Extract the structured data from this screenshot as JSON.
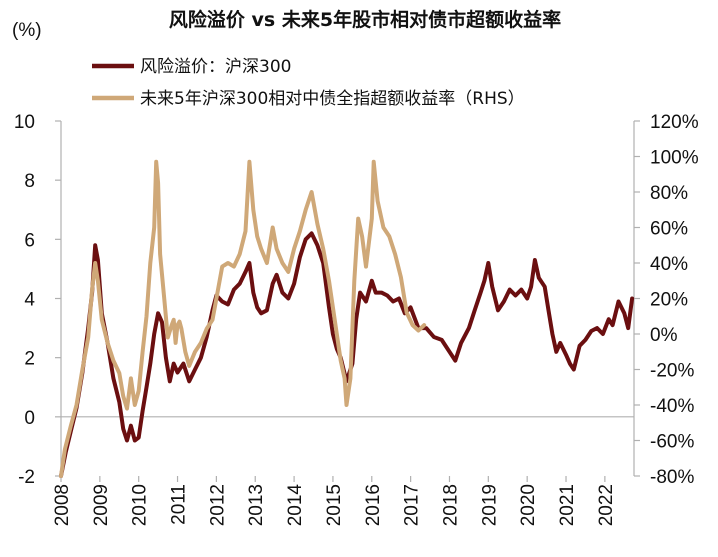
{
  "chart_data": {
    "type": "line",
    "title": "风险溢价 vs 未来5年股市相对债市超额收益率",
    "left_unit": "(%)",
    "colors": {
      "risk_premium": "#6b0f10",
      "excess_return": "#cfa878",
      "axis": "#b0b0b0",
      "neg_tick": "#cc1f1f"
    },
    "x": {
      "categories": [
        "2008",
        "2009",
        "2010",
        "2011",
        "2012",
        "2013",
        "2014",
        "2015",
        "2016",
        "2017",
        "2018",
        "2019",
        "2020",
        "2021",
        "2022"
      ],
      "range": [
        2008.0,
        2022.75
      ]
    },
    "y_left": {
      "range": [
        -2,
        10
      ],
      "ticks": [
        -2,
        0,
        2,
        4,
        6,
        8,
        10
      ]
    },
    "y_right": {
      "range": [
        -80,
        120
      ],
      "ticks": [
        -80,
        -60,
        -40,
        -20,
        0,
        20,
        40,
        60,
        80,
        100,
        120
      ],
      "tick_labels": [
        "-80%",
        "-60%",
        "-40%",
        "-20%",
        "0%",
        "20%",
        "40%",
        "60%",
        "80%",
        "100%",
        "120%"
      ]
    },
    "legend": [
      "风险溢价：沪深300",
      "未来5年沪深300相对中债全指超额收益率（RHS）"
    ],
    "series": [
      {
        "name": "风险溢价：沪深300",
        "axis": "left",
        "points": [
          [
            2008.0,
            -2.0
          ],
          [
            2008.12,
            -1.2
          ],
          [
            2008.25,
            -0.5
          ],
          [
            2008.4,
            0.3
          ],
          [
            2008.55,
            1.5
          ],
          [
            2008.7,
            3.0
          ],
          [
            2008.8,
            4.2
          ],
          [
            2008.88,
            5.8
          ],
          [
            2008.95,
            5.3
          ],
          [
            2009.05,
            3.5
          ],
          [
            2009.2,
            2.5
          ],
          [
            2009.35,
            1.3
          ],
          [
            2009.5,
            0.5
          ],
          [
            2009.6,
            -0.4
          ],
          [
            2009.7,
            -0.8
          ],
          [
            2009.8,
            -0.3
          ],
          [
            2009.9,
            -0.8
          ],
          [
            2010.0,
            -0.7
          ],
          [
            2010.1,
            0.2
          ],
          [
            2010.2,
            1.0
          ],
          [
            2010.3,
            1.8
          ],
          [
            2010.4,
            2.8
          ],
          [
            2010.5,
            3.5
          ],
          [
            2010.6,
            3.2
          ],
          [
            2010.7,
            2.0
          ],
          [
            2010.8,
            1.2
          ],
          [
            2010.9,
            1.8
          ],
          [
            2011.0,
            1.5
          ],
          [
            2011.15,
            1.8
          ],
          [
            2011.3,
            1.2
          ],
          [
            2011.45,
            1.6
          ],
          [
            2011.6,
            2.0
          ],
          [
            2011.75,
            2.7
          ],
          [
            2011.9,
            3.6
          ],
          [
            2012.0,
            4.1
          ],
          [
            2012.15,
            3.9
          ],
          [
            2012.3,
            3.8
          ],
          [
            2012.45,
            4.3
          ],
          [
            2012.6,
            4.5
          ],
          [
            2012.75,
            4.9
          ],
          [
            2012.85,
            5.2
          ],
          [
            2012.95,
            4.2
          ],
          [
            2013.05,
            3.7
          ],
          [
            2013.15,
            3.5
          ],
          [
            2013.3,
            3.6
          ],
          [
            2013.45,
            4.5
          ],
          [
            2013.55,
            4.8
          ],
          [
            2013.7,
            4.2
          ],
          [
            2013.85,
            4.0
          ],
          [
            2014.0,
            4.5
          ],
          [
            2014.15,
            5.4
          ],
          [
            2014.3,
            6.0
          ],
          [
            2014.45,
            6.2
          ],
          [
            2014.6,
            5.8
          ],
          [
            2014.75,
            5.2
          ],
          [
            2014.9,
            3.7
          ],
          [
            2015.0,
            2.8
          ],
          [
            2015.1,
            2.3
          ],
          [
            2015.2,
            2.0
          ],
          [
            2015.35,
            1.2
          ],
          [
            2015.5,
            1.8
          ],
          [
            2015.6,
            3.3
          ],
          [
            2015.7,
            4.2
          ],
          [
            2015.85,
            3.9
          ],
          [
            2016.0,
            4.6
          ],
          [
            2016.1,
            4.2
          ],
          [
            2016.25,
            4.2
          ],
          [
            2016.4,
            4.1
          ],
          [
            2016.55,
            3.9
          ],
          [
            2016.7,
            4.0
          ],
          [
            2016.85,
            3.5
          ],
          [
            2017.0,
            3.7
          ],
          [
            2017.2,
            3.0
          ],
          [
            2017.4,
            3.0
          ],
          [
            2017.6,
            2.7
          ],
          [
            2017.8,
            2.6
          ],
          [
            2018.0,
            2.2
          ],
          [
            2018.15,
            1.9
          ],
          [
            2018.3,
            2.5
          ],
          [
            2018.5,
            3.0
          ],
          [
            2018.65,
            3.6
          ],
          [
            2018.8,
            4.2
          ],
          [
            2018.9,
            4.6
          ],
          [
            2019.0,
            5.2
          ],
          [
            2019.1,
            4.4
          ],
          [
            2019.25,
            3.6
          ],
          [
            2019.4,
            3.9
          ],
          [
            2019.55,
            4.3
          ],
          [
            2019.7,
            4.1
          ],
          [
            2019.85,
            4.3
          ],
          [
            2020.0,
            4.0
          ],
          [
            2020.1,
            4.4
          ],
          [
            2020.2,
            5.3
          ],
          [
            2020.3,
            4.7
          ],
          [
            2020.45,
            4.4
          ],
          [
            2020.55,
            3.6
          ],
          [
            2020.65,
            2.8
          ],
          [
            2020.75,
            2.2
          ],
          [
            2020.85,
            2.5
          ],
          [
            2021.0,
            2.1
          ],
          [
            2021.1,
            1.8
          ],
          [
            2021.2,
            1.6
          ],
          [
            2021.35,
            2.4
          ],
          [
            2021.5,
            2.6
          ],
          [
            2021.65,
            2.9
          ],
          [
            2021.8,
            3.0
          ],
          [
            2021.95,
            2.8
          ],
          [
            2022.1,
            3.3
          ],
          [
            2022.2,
            3.1
          ],
          [
            2022.35,
            3.9
          ],
          [
            2022.5,
            3.5
          ],
          [
            2022.6,
            3.0
          ],
          [
            2022.7,
            4.0
          ]
        ]
      },
      {
        "name": "未来5年沪深300相对中债全指超额收益率（RHS）",
        "axis": "right",
        "points": [
          [
            2008.0,
            -80
          ],
          [
            2008.1,
            -65
          ],
          [
            2008.25,
            -52
          ],
          [
            2008.4,
            -40
          ],
          [
            2008.55,
            -20
          ],
          [
            2008.7,
            -2
          ],
          [
            2008.8,
            25
          ],
          [
            2008.88,
            40
          ],
          [
            2008.95,
            30
          ],
          [
            2009.05,
            8
          ],
          [
            2009.2,
            -5
          ],
          [
            2009.35,
            -15
          ],
          [
            2009.5,
            -22
          ],
          [
            2009.6,
            -35
          ],
          [
            2009.7,
            -42
          ],
          [
            2009.8,
            -25
          ],
          [
            2009.9,
            -40
          ],
          [
            2010.0,
            -32
          ],
          [
            2010.1,
            -10
          ],
          [
            2010.2,
            10
          ],
          [
            2010.3,
            40
          ],
          [
            2010.4,
            60
          ],
          [
            2010.45,
            97
          ],
          [
            2010.5,
            85
          ],
          [
            2010.55,
            45
          ],
          [
            2010.65,
            22
          ],
          [
            2010.75,
            -2
          ],
          [
            2010.85,
            5
          ],
          [
            2010.9,
            8
          ],
          [
            2010.95,
            -5
          ],
          [
            2011.0,
            5
          ],
          [
            2011.05,
            7
          ],
          [
            2011.1,
            3
          ],
          [
            2011.2,
            -10
          ],
          [
            2011.3,
            -18
          ],
          [
            2011.45,
            -10
          ],
          [
            2011.6,
            -5
          ],
          [
            2011.75,
            3
          ],
          [
            2011.9,
            8
          ],
          [
            2012.0,
            20
          ],
          [
            2012.15,
            38
          ],
          [
            2012.3,
            40
          ],
          [
            2012.45,
            38
          ],
          [
            2012.6,
            45
          ],
          [
            2012.75,
            58
          ],
          [
            2012.85,
            97
          ],
          [
            2012.95,
            70
          ],
          [
            2013.05,
            55
          ],
          [
            2013.15,
            48
          ],
          [
            2013.3,
            40
          ],
          [
            2013.45,
            60
          ],
          [
            2013.55,
            48
          ],
          [
            2013.7,
            40
          ],
          [
            2013.85,
            35
          ],
          [
            2014.0,
            48
          ],
          [
            2014.15,
            58
          ],
          [
            2014.3,
            70
          ],
          [
            2014.45,
            80
          ],
          [
            2014.6,
            62
          ],
          [
            2014.75,
            48
          ],
          [
            2014.9,
            30
          ],
          [
            2015.0,
            15
          ],
          [
            2015.1,
            0
          ],
          [
            2015.2,
            -15
          ],
          [
            2015.3,
            -25
          ],
          [
            2015.35,
            -40
          ],
          [
            2015.45,
            -25
          ],
          [
            2015.55,
            30
          ],
          [
            2015.65,
            65
          ],
          [
            2015.75,
            55
          ],
          [
            2015.85,
            38
          ],
          [
            2016.0,
            65
          ],
          [
            2016.05,
            97
          ],
          [
            2016.15,
            75
          ],
          [
            2016.3,
            60
          ],
          [
            2016.45,
            55
          ],
          [
            2016.6,
            45
          ],
          [
            2016.75,
            32
          ],
          [
            2016.9,
            12
          ],
          [
            2017.05,
            5
          ],
          [
            2017.2,
            2
          ],
          [
            2017.35,
            5
          ]
        ]
      }
    ]
  }
}
